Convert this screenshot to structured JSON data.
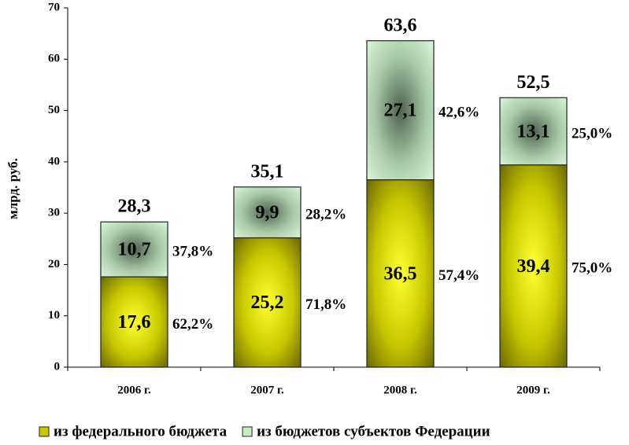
{
  "chart_data": {
    "type": "stacked-bar",
    "y_label": "млрд. руб.",
    "categories": [
      "2006 г.",
      "2007 г.",
      "2008 г.",
      "2009 г."
    ],
    "series": [
      {
        "name": "из федерального бюджета",
        "color": "#c8c800",
        "values": [
          17.6,
          25.2,
          36.5,
          39.4
        ],
        "value_labels": [
          "17,6",
          "25,2",
          "36,5",
          "39,4"
        ],
        "shares": [
          62.2,
          71.8,
          57.4,
          75.0
        ],
        "share_labels": [
          "62,2%",
          "71,8%",
          "57,4%",
          "75,0%"
        ]
      },
      {
        "name": "из бюджетов субъектов Федерации",
        "color": "#c8ecc8",
        "values": [
          10.7,
          9.9,
          27.1,
          13.1
        ],
        "value_labels": [
          "10,7",
          "9,9",
          "27,1",
          "13,1"
        ],
        "shares": [
          37.8,
          28.2,
          42.6,
          25.0
        ],
        "share_labels": [
          "37,8%",
          "28,2%",
          "42,6%",
          "25,0%"
        ]
      }
    ],
    "totals": [
      28.3,
      35.1,
      63.6,
      52.5
    ],
    "total_labels": [
      "28,3",
      "35,1",
      "63,6",
      "52,5"
    ],
    "ylim": [
      0,
      70
    ],
    "yticks": [
      0,
      10,
      20,
      30,
      40,
      50,
      60,
      70
    ],
    "grid": false
  }
}
